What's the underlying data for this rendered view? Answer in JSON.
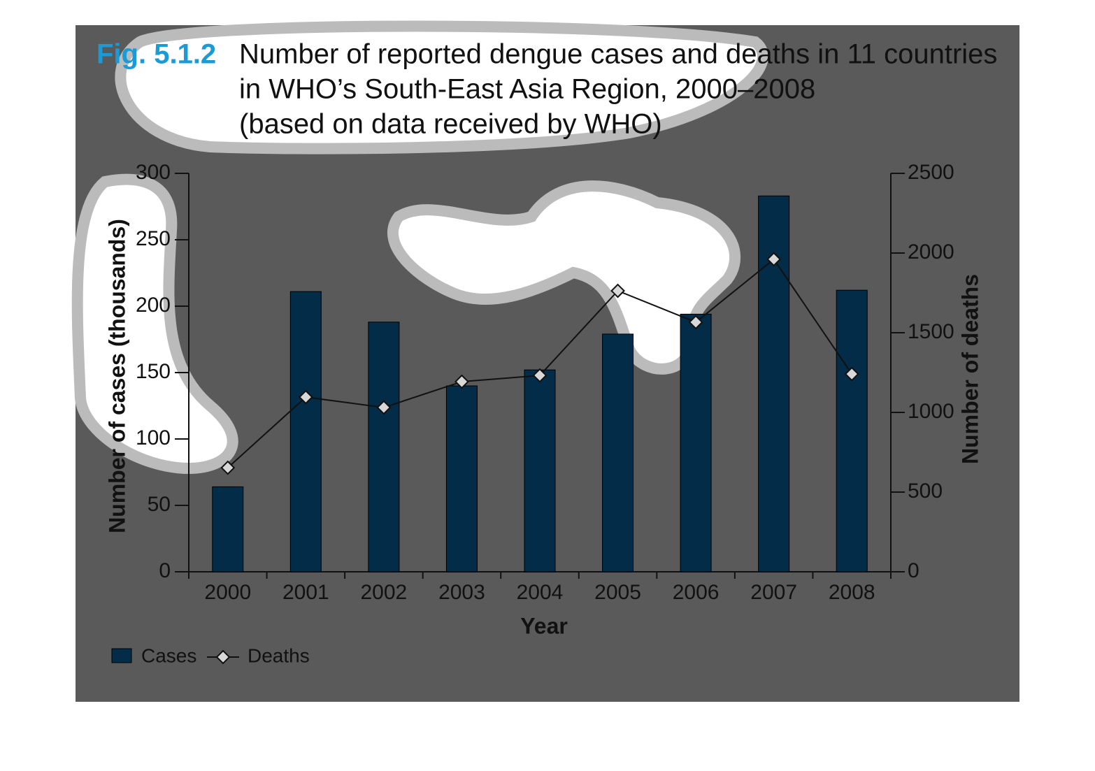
{
  "chart_data": {
    "type": "bar",
    "title_label": "Fig. 5.1.2",
    "title_lines": [
      "Number of reported dengue cases and deaths in 11 countries",
      "in WHO’s South-East Asia Region, 2000–2008",
      "(based on data received by WHO)"
    ],
    "x_label": "Year",
    "y_label": "Number of cases (thousands)",
    "y2_label": "Number of deaths",
    "categories": [
      "2000",
      "2001",
      "2002",
      "2003",
      "2004",
      "2005",
      "2006",
      "2007",
      "2008"
    ],
    "series": [
      {
        "name": "Cases",
        "type": "bar",
        "color": "#022c47",
        "values": [
          64,
          211,
          188,
          140,
          152,
          179,
          194,
          283,
          212
        ]
      },
      {
        "name": "Deaths",
        "type": "line",
        "axis": "y2",
        "color": "#111111",
        "values": [
          653,
          1096,
          1031,
          1193,
          1232,
          1763,
          1566,
          1961,
          1241
        ]
      }
    ],
    "ylim": [
      0,
      300
    ],
    "yticks": [
      0,
      50,
      100,
      150,
      200,
      250,
      300
    ],
    "y2lim": [
      0,
      2500
    ],
    "y2ticks": [
      0,
      500,
      1000,
      1500,
      2000,
      2500
    ],
    "legend": "bottom-left"
  }
}
